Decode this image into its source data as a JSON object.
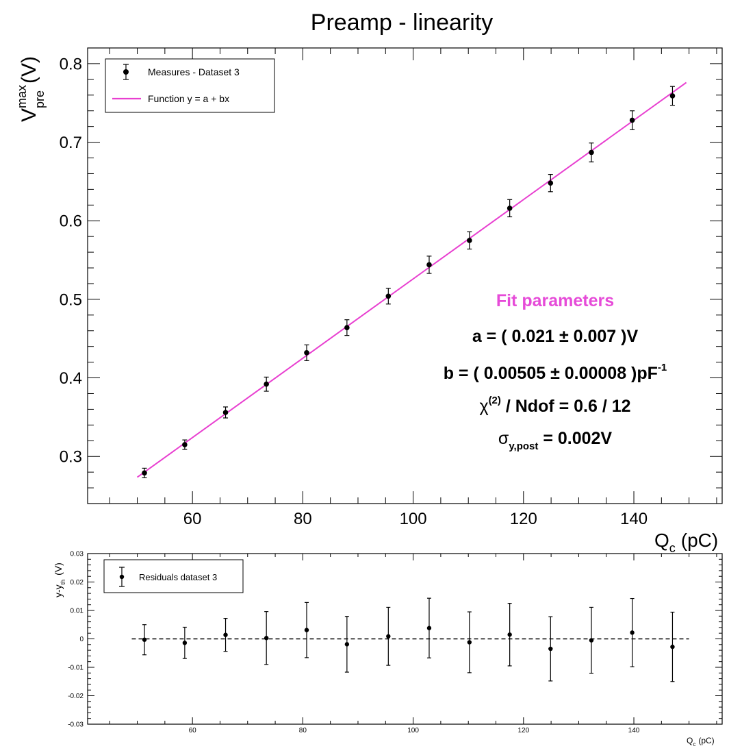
{
  "title": "Preamp - linearity",
  "main": {
    "ylabel": {
      "base": "V",
      "sup": "max",
      "sub": "pre",
      "unit": "(V)"
    },
    "xlabel": {
      "base": "Q",
      "sub": "c",
      "unit": "(pC)"
    },
    "legend": {
      "points": "Measures - Dataset 3",
      "line": "Function y = a + bx"
    },
    "fit_box": {
      "heading": "Fit parameters",
      "a_line": "a = (  0.021 ± 0.007 )V",
      "b_line_main": "b = ( 0.00505 ±  0.00008 )pF",
      "b_line_sup": "-1",
      "chi_base": "χ",
      "chi_sup": "(2)",
      "chi_rest": " / Ndof = 0.6 / 12",
      "sigma_base": "σ",
      "sigma_sub": "y,post",
      "sigma_rest": " = 0.002V"
    }
  },
  "residual": {
    "ylabel": {
      "base": "y-y",
      "sub": "th",
      "unit": "(V)"
    },
    "xlabel": {
      "base": "Q",
      "sub": "c",
      "unit": "(pC)"
    },
    "legend": {
      "points": "Residuals dataset 3"
    }
  },
  "colors": {
    "fit_line": "#e83fd0",
    "fit_heading": "#e64bd8",
    "points": "#000000",
    "zero_line": "#000000"
  },
  "chart_data": [
    {
      "type": "scatter",
      "name": "main",
      "xlim": [
        41,
        156
      ],
      "ylim": [
        0.24,
        0.82
      ],
      "x_ticks": [
        60,
        80,
        100,
        120,
        140
      ],
      "y_ticks": [
        0.3,
        0.4,
        0.5,
        0.6,
        0.7,
        0.8
      ],
      "tick_labels_y": [
        "0.3",
        "0.4",
        "0.5",
        "0.6",
        "0.7",
        "0.8"
      ],
      "series": [
        {
          "name": "Measures - Dataset 3",
          "x": [
            51.3,
            58.6,
            66.0,
            73.4,
            80.7,
            88.0,
            95.5,
            102.9,
            110.2,
            117.5,
            124.9,
            132.3,
            139.7,
            147.0
          ],
          "y": [
            0.279,
            0.315,
            0.356,
            0.392,
            0.432,
            0.464,
            0.504,
            0.544,
            0.575,
            0.616,
            0.648,
            0.687,
            0.728,
            0.759
          ],
          "yerr": [
            0.006,
            0.006,
            0.007,
            0.009,
            0.01,
            0.01,
            0.01,
            0.011,
            0.011,
            0.011,
            0.011,
            0.012,
            0.012,
            0.012
          ]
        }
      ],
      "fit": {
        "name": "Function y = a + bx",
        "a": 0.021,
        "b": 0.00505,
        "x_range": [
          50.0,
          149.5
        ]
      }
    },
    {
      "type": "scatter",
      "name": "residuals",
      "xlim": [
        41,
        156
      ],
      "ylim": [
        -0.03,
        0.03
      ],
      "x_ticks": [
        60,
        80,
        100,
        120,
        140
      ],
      "y_ticks": [
        -0.03,
        -0.02,
        -0.01,
        0,
        0.01,
        0.02,
        0.03
      ],
      "tick_labels_y": [
        "-0.03",
        "-0.02",
        "-0.01",
        "0",
        "0.01",
        "0.02",
        "0.03"
      ],
      "zero_line_range": [
        49,
        150
      ],
      "series": [
        {
          "name": "Residuals dataset 3",
          "x": [
            51.3,
            58.6,
            66.0,
            73.4,
            80.7,
            88.0,
            95.5,
            102.9,
            110.2,
            117.5,
            124.9,
            132.3,
            139.7,
            147.0
          ],
          "y": [
            -0.0003,
            -0.0014,
            0.0014,
            0.0003,
            0.0031,
            -0.0019,
            0.0009,
            0.0038,
            -0.0012,
            0.0015,
            -0.0035,
            -0.0005,
            0.0022,
            -0.0028
          ],
          "yerr": [
            0.0053,
            0.0055,
            0.0058,
            0.0093,
            0.0097,
            0.0098,
            0.0102,
            0.0105,
            0.0107,
            0.011,
            0.0113,
            0.0116,
            0.012,
            0.0122
          ]
        }
      ]
    }
  ]
}
